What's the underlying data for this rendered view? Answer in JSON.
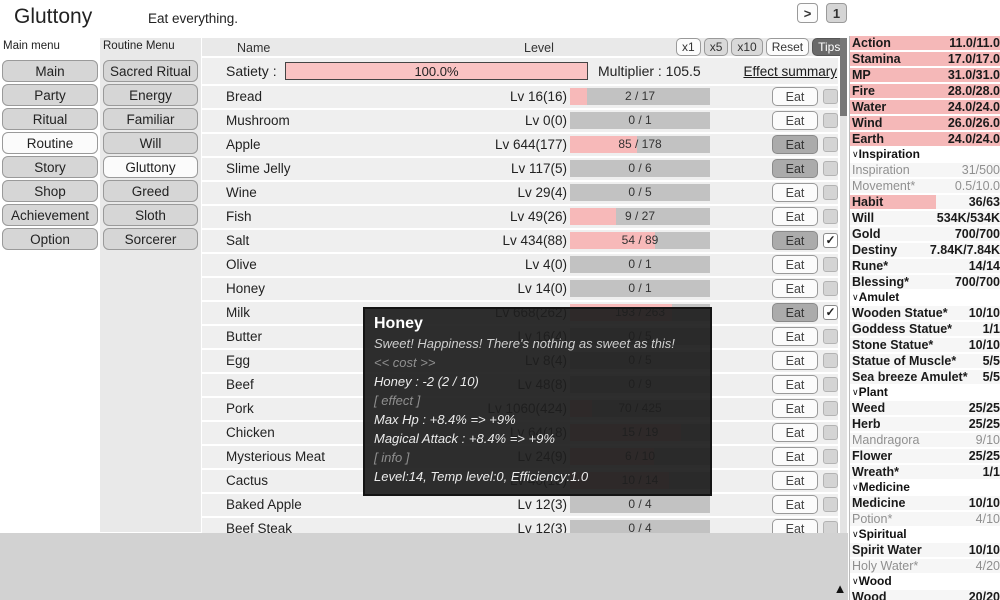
{
  "title": "Gluttony",
  "subtitle": "Eat everything.",
  "top_buttons": {
    "advance": ">",
    "speed": "1"
  },
  "main_menu": {
    "label": "Main menu",
    "items": [
      {
        "label": "Main",
        "active": false
      },
      {
        "label": "Party",
        "active": false
      },
      {
        "label": "Ritual",
        "active": false
      },
      {
        "label": "Routine",
        "active": true
      },
      {
        "label": "Story",
        "active": false
      },
      {
        "label": "Shop",
        "active": false
      },
      {
        "label": "Achievement",
        "active": false
      },
      {
        "label": "Option",
        "active": false
      }
    ]
  },
  "routine_menu": {
    "label": "Routine Menu",
    "items": [
      {
        "label": "Sacred Ritual",
        "active": false
      },
      {
        "label": "Energy",
        "active": false
      },
      {
        "label": "Familiar",
        "active": false
      },
      {
        "label": "Will",
        "active": false
      },
      {
        "label": "Gluttony",
        "active": true
      },
      {
        "label": "Greed",
        "active": false
      },
      {
        "label": "Sloth",
        "active": false
      },
      {
        "label": "Sorcerer",
        "active": false
      }
    ]
  },
  "table": {
    "name_header": "Name",
    "level_header": "Level",
    "controls": [
      {
        "label": "x1",
        "state": "lit"
      },
      {
        "label": "x5",
        "state": "normal"
      },
      {
        "label": "x10",
        "state": "normal"
      },
      {
        "label": "Reset",
        "state": "lit"
      },
      {
        "label": "Tips",
        "state": "dark"
      }
    ],
    "satiety_label": "Satiety :",
    "satiety_value": "100.0%",
    "satiety_percent": 100,
    "multiplier": "Multiplier : 105.5",
    "effect_summary": "Effect summary",
    "eat_label": "Eat",
    "check_glyph": "✓",
    "rows": [
      {
        "name": "Bread",
        "level": "Lv 16(16)",
        "progress": "2 / 17",
        "pct": 12,
        "eat_active": false,
        "checked": false
      },
      {
        "name": "Mushroom",
        "level": "Lv 0(0)",
        "progress": "0 / 1",
        "pct": 0,
        "eat_active": false,
        "checked": false
      },
      {
        "name": "Apple",
        "level": "Lv 644(177)",
        "progress": "85 / 178",
        "pct": 48,
        "eat_active": true,
        "checked": false
      },
      {
        "name": "Slime Jelly",
        "level": "Lv 117(5)",
        "progress": "0 / 6",
        "pct": 0,
        "eat_active": true,
        "checked": false
      },
      {
        "name": "Wine",
        "level": "Lv 29(4)",
        "progress": "0 / 5",
        "pct": 0,
        "eat_active": false,
        "checked": false
      },
      {
        "name": "Fish",
        "level": "Lv 49(26)",
        "progress": "9 / 27",
        "pct": 33,
        "eat_active": false,
        "checked": false
      },
      {
        "name": "Salt",
        "level": "Lv 434(88)",
        "progress": "54 / 89",
        "pct": 61,
        "eat_active": true,
        "checked": true
      },
      {
        "name": "Olive",
        "level": "Lv 4(0)",
        "progress": "0 / 1",
        "pct": 0,
        "eat_active": false,
        "checked": false
      },
      {
        "name": "Honey",
        "level": "Lv 14(0)",
        "progress": "0 / 1",
        "pct": 0,
        "eat_active": false,
        "checked": false
      },
      {
        "name": "Milk",
        "level": "Lv 668(262)",
        "progress": "193 / 263",
        "pct": 73,
        "eat_active": true,
        "checked": true
      },
      {
        "name": "Butter",
        "level": "Lv 16(4)",
        "progress": "0 / 5",
        "pct": 0,
        "eat_active": false,
        "checked": false
      },
      {
        "name": "Egg",
        "level": "Lv 8(4)",
        "progress": "0 / 5",
        "pct": 0,
        "eat_active": false,
        "checked": false
      },
      {
        "name": "Beef",
        "level": "Lv 48(8)",
        "progress": "0 / 9",
        "pct": 0,
        "eat_active": false,
        "checked": false
      },
      {
        "name": "Pork",
        "level": "Lv 1060(424)",
        "progress": "70 / 425",
        "pct": 16,
        "eat_active": false,
        "checked": false
      },
      {
        "name": "Chicken",
        "level": "Lv 64(18)",
        "progress": "15 / 19",
        "pct": 79,
        "eat_active": false,
        "checked": false
      },
      {
        "name": "Mysterious Meat",
        "level": "Lv 24(9)",
        "progress": "6 / 10",
        "pct": 60,
        "eat_active": false,
        "checked": false
      },
      {
        "name": "Cactus",
        "level": "Lv 40(13)",
        "progress": "10 / 14",
        "pct": 71,
        "eat_active": false,
        "checked": false
      },
      {
        "name": "Baked Apple",
        "level": "Lv 12(3)",
        "progress": "0 / 4",
        "pct": 0,
        "eat_active": false,
        "checked": false
      },
      {
        "name": "Beef Steak",
        "level": "Lv 12(3)",
        "progress": "0 / 4",
        "pct": 0,
        "eat_active": false,
        "checked": false
      }
    ]
  },
  "tooltip": {
    "title": "Honey",
    "lines": [
      {
        "text": "Sweet! Happiness! There's nothing as sweet as this!",
        "style": "desc"
      },
      {
        "text": "<< cost >>",
        "style": "muted"
      },
      {
        "text": "Honey : -2 (2 / 10)",
        "style": "plain"
      },
      {
        "text": "[ effect ]",
        "style": "muted"
      },
      {
        "text": "Max Hp : +8.4% => +9%",
        "style": "plain"
      },
      {
        "text": "Magical Attack : +8.4% => +9%",
        "style": "plain"
      },
      {
        "text": "[ info ]",
        "style": "muted"
      },
      {
        "text": "Level:14, Temp level:0, Efficiency:1.0",
        "style": "plain"
      }
    ]
  },
  "sidebar": {
    "chevron": "∨",
    "scroll_up_glyph": "▲",
    "stats": [
      {
        "label": "Action",
        "value": "11.0/11.0",
        "fill": 100
      },
      {
        "label": "Stamina",
        "value": "17.0/17.0",
        "fill": 100
      },
      {
        "label": "MP",
        "value": "31.0/31.0",
        "fill": 100
      },
      {
        "label": "Fire",
        "value": "28.0/28.0",
        "fill": 100
      },
      {
        "label": "Water",
        "value": "24.0/24.0",
        "fill": 100
      },
      {
        "label": "Wind",
        "value": "26.0/26.0",
        "fill": 100
      },
      {
        "label": "Earth",
        "value": "24.0/24.0",
        "fill": 100
      }
    ],
    "sections": [
      {
        "title": "Inspiration",
        "rows": [
          {
            "label": "Inspiration",
            "value": "31/500",
            "muted": true
          },
          {
            "label": "Movement*",
            "value": "0.5/10.0",
            "muted": true
          },
          {
            "label": "Habit",
            "value": "36/63",
            "fill": 57
          },
          {
            "label": "Will",
            "value": "534K/534K"
          },
          {
            "label": "Gold",
            "value": "700/700"
          },
          {
            "label": "Destiny",
            "value": "7.84K/7.84K"
          },
          {
            "label": "Rune*",
            "value": "14/14"
          },
          {
            "label": "Blessing*",
            "value": "700/700"
          }
        ]
      },
      {
        "title": "Amulet",
        "rows": [
          {
            "label": "Wooden Statue*",
            "value": "10/10"
          },
          {
            "label": "Goddess Statue*",
            "value": "1/1"
          },
          {
            "label": "Stone Statue*",
            "value": "10/10"
          },
          {
            "label": "Statue of Muscle*",
            "value": "5/5"
          },
          {
            "label": "Sea breeze Amulet*",
            "value": "5/5"
          }
        ]
      },
      {
        "title": "Plant",
        "rows": [
          {
            "label": "Weed",
            "value": "25/25"
          },
          {
            "label": "Herb",
            "value": "25/25"
          },
          {
            "label": "Mandragora",
            "value": "9/10",
            "muted": true
          },
          {
            "label": "Flower",
            "value": "25/25"
          },
          {
            "label": "Wreath*",
            "value": "1/1"
          }
        ]
      },
      {
        "title": "Medicine",
        "rows": [
          {
            "label": "Medicine",
            "value": "10/10"
          },
          {
            "label": "Potion*",
            "value": "4/10",
            "muted": true
          }
        ]
      },
      {
        "title": "Spiritual",
        "rows": [
          {
            "label": "Spirit Water",
            "value": "10/10"
          },
          {
            "label": "Holy Water*",
            "value": "4/20",
            "muted": true
          }
        ]
      },
      {
        "title": "Wood",
        "rows": [
          {
            "label": "Wood",
            "value": "20/20"
          }
        ]
      }
    ]
  },
  "colors": {
    "accent_pink": "#f7b9b9",
    "bar_track": "#c2c2c2",
    "row_bg": "#efefef",
    "panel_gray": "#d2d2d2",
    "tooltip_bg": "#1e1e1e"
  }
}
